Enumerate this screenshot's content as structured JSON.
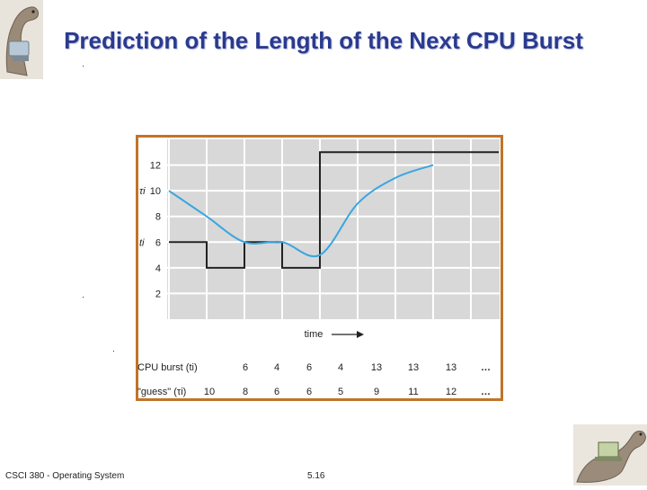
{
  "slide": {
    "title": "Prediction of the Length of the Next CPU Burst",
    "footer_left": "CSCI 380 - Operating System",
    "footer_center": "5.16"
  },
  "colors": {
    "title": "#2a3a8f",
    "frame": "#c0742a",
    "plot_bg": "#d8d8d8",
    "grid": "#ffffff",
    "burst_line": "#222222",
    "guess_line": "#3aa6de"
  },
  "chart_data": {
    "type": "line",
    "xlabel": "time",
    "ylabel_fragments": [
      "τi",
      "ti"
    ],
    "yticks": [
      2,
      4,
      6,
      8,
      10,
      12
    ],
    "ylim": [
      0,
      14
    ],
    "grid": true,
    "series": [
      {
        "name": "CPU burst (ti)",
        "style": "step",
        "values": [
          6,
          4,
          6,
          4,
          13,
          13,
          13
        ]
      },
      {
        "name": "\"guess\" (τi)",
        "style": "smooth",
        "values": [
          10,
          8,
          6,
          6,
          5,
          9,
          11,
          12
        ]
      }
    ],
    "table": {
      "rows": [
        {
          "label": "CPU burst (ti)",
          "values": [
            "6",
            "4",
            "6",
            "4",
            "13",
            "13",
            "13"
          ],
          "ellipsis": "…"
        },
        {
          "label": "\"guess\" (τi)",
          "values": [
            "10",
            "8",
            "6",
            "6",
            "5",
            "9",
            "11",
            "12"
          ],
          "ellipsis": "…"
        }
      ]
    }
  }
}
